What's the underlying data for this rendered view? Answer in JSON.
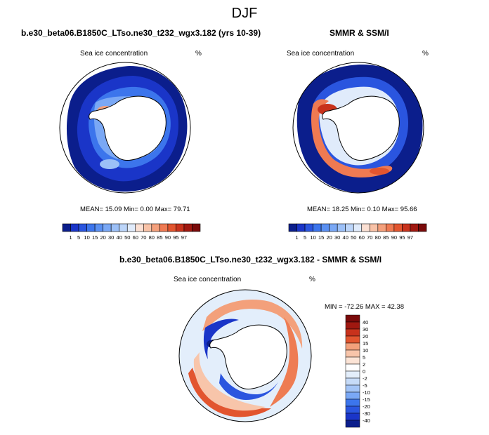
{
  "page_title": "DJF",
  "colors": {
    "palette_pos": [
      "#0b1e8c",
      "#1a35c8",
      "#2a55df",
      "#3c75ec",
      "#5a90f2",
      "#7aa8f5",
      "#9cc0f7",
      "#bcd5f9",
      "#e0ebfb",
      "#fbe0d3",
      "#f8c2a7",
      "#f4a07c",
      "#ef7a52",
      "#e2552f",
      "#c8321c",
      "#a01810",
      "#7a0a0a"
    ],
    "palette_diff": [
      "#0b1e8c",
      "#1a35c8",
      "#2a55df",
      "#3c75ec",
      "#5a90f2",
      "#7aa8f5",
      "#a3c4f6",
      "#c6dbf8",
      "#e3eefb",
      "#ffffff",
      "#fce4d6",
      "#f8c5aa",
      "#f3a07b",
      "#ee7c53",
      "#e2552f",
      "#c8321c",
      "#a01810",
      "#7a0a0a"
    ],
    "land": "#ffffff",
    "ocean_open": "#ffffff"
  },
  "chart_data": [
    {
      "type": "heatmap",
      "title": "b.e30_beta06.B1850C_LTso.ne30_t232_wgx3.182 (yrs 10-39)",
      "left_label": "Sea ice concentration",
      "right_label": "%",
      "stats": {
        "mean": "15.09",
        "min": "0.00",
        "max": "79.71"
      },
      "stats_text": "MEAN=  15.09  Min=   0.00  Max=  79.71",
      "colorbar_levels": [
        "1",
        "5",
        "10",
        "15",
        "20",
        "30",
        "40",
        "50",
        "60",
        "70",
        "80",
        "85",
        "90",
        "95",
        "97"
      ]
    },
    {
      "type": "heatmap",
      "title": "SMMR & SSM/I",
      "left_label": "Sea ice concentration",
      "right_label": "%",
      "stats": {
        "mean": "18.25",
        "min": "0.10",
        "max": "95.66"
      },
      "stats_text": "MEAN=  18.25  Min=   0.10  Max=  95.66",
      "colorbar_levels": [
        "1",
        "5",
        "10",
        "15",
        "20",
        "30",
        "40",
        "50",
        "60",
        "70",
        "80",
        "85",
        "90",
        "95",
        "97"
      ]
    },
    {
      "type": "heatmap",
      "title": "b.e30_beta06.B1850C_LTso.ne30_t232_wgx3.182 - SMMR & SSM/I",
      "left_label": "Sea ice concentration",
      "right_label": "%",
      "stats": {
        "min": "-72.26",
        "max": "42.38"
      },
      "stats_text": "MIN = -72.26 MAX =  42.38",
      "colorbar_levels": [
        "40",
        "30",
        "20",
        "15",
        "10",
        "5",
        "2",
        "0",
        "-2",
        "-5",
        "-10",
        "-15",
        "-20",
        "-30",
        "-40"
      ]
    }
  ]
}
